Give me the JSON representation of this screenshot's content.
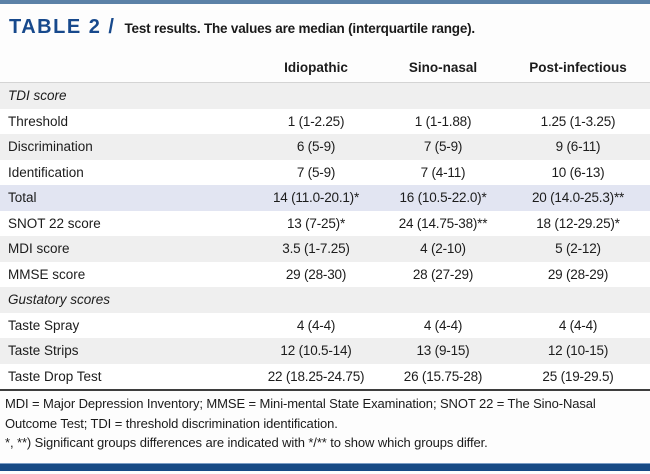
{
  "page": {
    "title_label": "TABLE 2 /",
    "title_text": "Test results. The values are median (interquartile range)."
  },
  "colors": {
    "accent_navy": "#17498c",
    "top_rule_blue": "#5b81a7",
    "bottom_rule_navy": "#174a85",
    "row_stripe_gray": "#efefef",
    "row_highlight_blue": "#e2e5f2"
  },
  "table": {
    "column_headers": [
      "Idiopathic",
      "Sino-nasal",
      "Post-infectious"
    ],
    "rows": [
      {
        "label": "TDI score",
        "type": "section",
        "values": [
          "",
          "",
          ""
        ]
      },
      {
        "label": "Threshold",
        "type": "data",
        "values": [
          "1 (1-2.25)",
          "1 (1-1.88)",
          "1.25 (1-3.25)"
        ]
      },
      {
        "label": "Discrimination",
        "type": "data",
        "values": [
          "6 (5-9)",
          "7 (5-9)",
          "9 (6-11)"
        ]
      },
      {
        "label": "Identification",
        "type": "data",
        "values": [
          "7 (5-9)",
          "7 (4-11)",
          "10 (6-13)"
        ]
      },
      {
        "label": "Total",
        "type": "highlight",
        "values": [
          "14 (11.0-20.1)*",
          "16 (10.5-22.0)*",
          "20 (14.0-25.3)**"
        ]
      },
      {
        "label": "SNOT 22 score",
        "type": "data",
        "values": [
          "13 (7-25)*",
          "24 (14.75-38)**",
          "18 (12-29.25)*"
        ]
      },
      {
        "label": "MDI score",
        "type": "data",
        "values": [
          "3.5 (1-7.25)",
          "4 (2-10)",
          "5 (2-12)"
        ]
      },
      {
        "label": "MMSE score",
        "type": "data",
        "values": [
          "29 (28-30)",
          "28 (27-29)",
          "29 (28-29)"
        ]
      },
      {
        "label": "Gustatory scores",
        "type": "section",
        "values": [
          "",
          "",
          ""
        ]
      },
      {
        "label": "Taste Spray",
        "type": "data",
        "values": [
          "4 (4-4)",
          "4 (4-4)",
          "4 (4-4)"
        ]
      },
      {
        "label": "Taste Strips",
        "type": "data",
        "values": [
          "12 (10.5-14)",
          "13 (9-15)",
          "12 (10-15)"
        ]
      },
      {
        "label": "Taste Drop Test",
        "type": "data",
        "values": [
          "22 (18.25-24.75)",
          "26 (15.75-28)",
          "25 (19-29.5)"
        ]
      }
    ]
  },
  "footnotes": {
    "abbreviations": "MDI = Major Depression Inventory; MMSE = Mini-mental State Examination; SNOT 22 = The Sino-Nasal Outcome Test; TDI = threshold discrimination identification.",
    "significance": "*, **) Significant groups differences are indicated with */** to show which groups differ."
  }
}
